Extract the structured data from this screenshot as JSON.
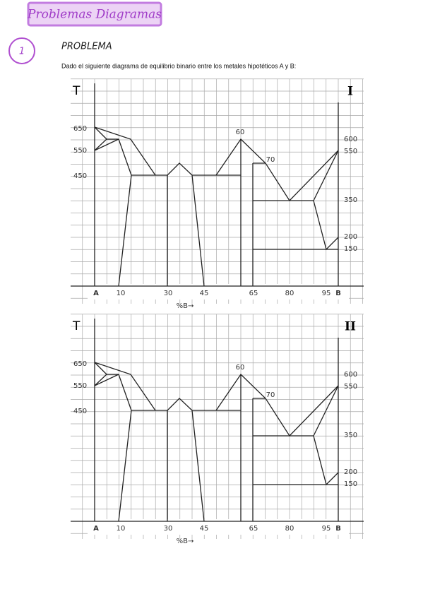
{
  "header": {
    "title": "Problemas Diagramas"
  },
  "problem": {
    "number": "1",
    "title": "PROBLEMA",
    "text": "Dado el siguiente diagrama de equilibrio binario entre los metales hipotéticos A y B:"
  },
  "diagrams": [
    {
      "axis_label": "T",
      "numeral": "I",
      "left_labels": [
        650,
        550,
        450
      ],
      "right_labels": [
        600,
        550,
        350,
        200,
        150
      ],
      "peak_labels": [
        60,
        70
      ],
      "x_labels": [
        "A",
        10,
        30,
        45,
        65,
        80,
        95,
        "B"
      ],
      "x_axis_label": "%B→"
    },
    {
      "axis_label": "T",
      "numeral": "II",
      "left_labels": [
        650,
        550,
        450
      ],
      "right_labels": [
        600,
        550,
        350,
        200,
        150
      ],
      "peak_labels": [
        60,
        70
      ],
      "x_labels": [
        "A",
        10,
        30,
        45,
        65,
        80,
        95,
        "B"
      ],
      "x_axis_label": "%B→"
    }
  ]
}
